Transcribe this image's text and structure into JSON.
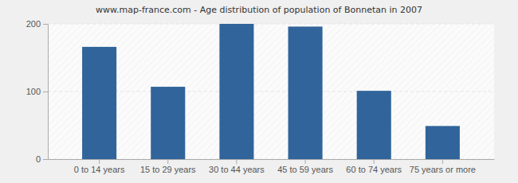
{
  "chart_data": {
    "type": "bar",
    "title": "www.map-france.com - Age distribution of population of Bonnetan in 2007",
    "categories": [
      "0 to 14 years",
      "15 to 29 years",
      "30 to 44 years",
      "45 to 59 years",
      "60 to 74 years",
      "75 years or more"
    ],
    "values": [
      166,
      107,
      200,
      196,
      101,
      49
    ],
    "color": "#31649a",
    "ylim": [
      0,
      200
    ],
    "yticks": [
      0,
      100,
      200
    ],
    "grid": true
  }
}
